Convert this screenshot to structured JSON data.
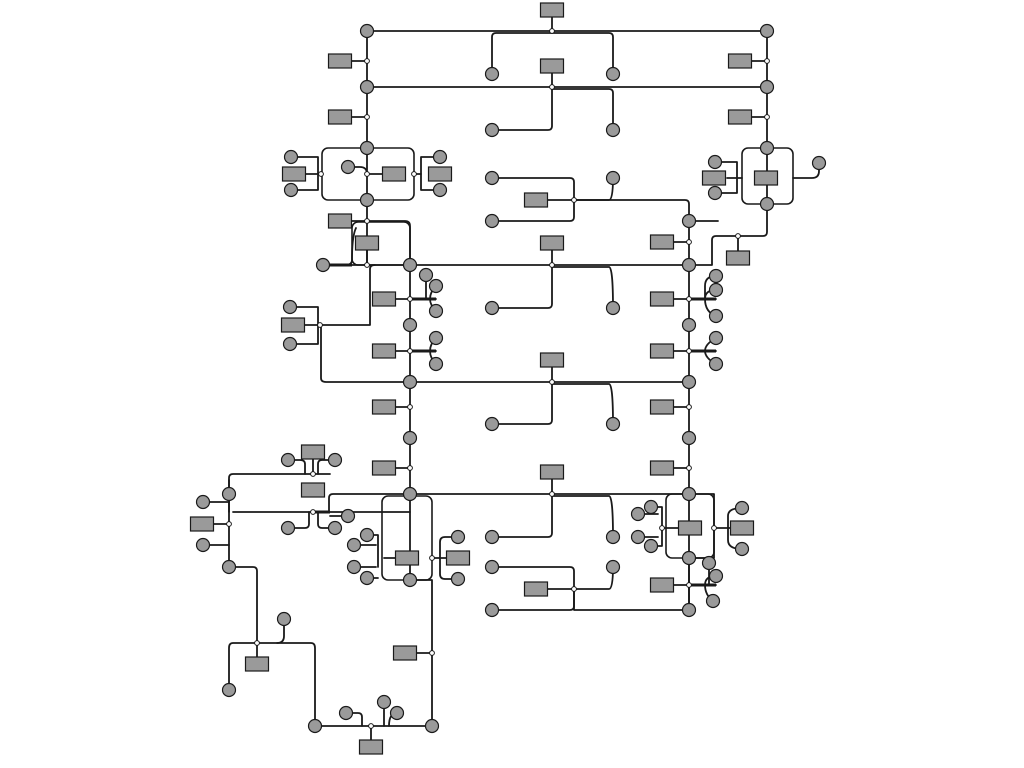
{
  "diagram": {
    "type": "node-link graph",
    "node_shapes": [
      "circle",
      "rectangle"
    ],
    "colors": {
      "node_fill": "#9a9a9a",
      "edge": "#1a1a1a",
      "background": "#ffffff"
    }
  }
}
